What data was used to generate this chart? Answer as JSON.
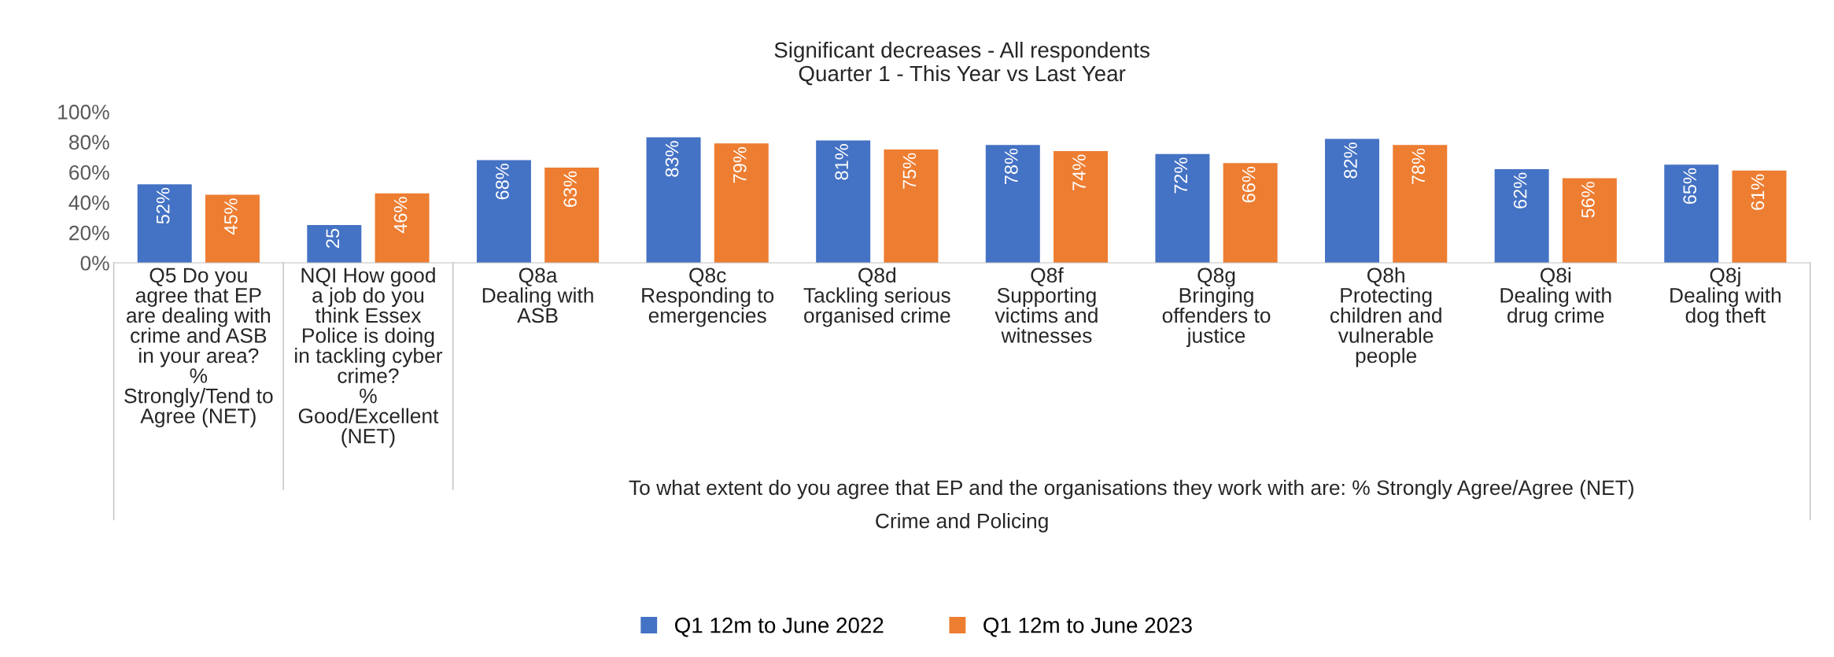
{
  "chart_data": {
    "type": "bar",
    "title": "Significant decreases - All respondents\nQuarter 1 - This Year vs Last Year",
    "categories": [
      "Q5 Do you\nagree that EP\nare dealing with\ncrime and ASB\nin your area?\n%\nStrongly/Tend to\nAgree (NET)",
      "NQI How good\na job do you\nthink Essex\nPolice is doing\nin tackling cyber\ncrime?\n%\nGood/Excellent\n(NET)",
      "Q8a\nDealing with\nASB",
      "Q8c\nResponding to\nemergencies",
      "Q8d\nTackling serious\norganised crime",
      "Q8f\nSupporting\nvictims and\nwitnesses",
      "Q8g\nBringing\noffenders to\njustice",
      "Q8h\nProtecting\nchildren and\nvulnerable\npeople",
      "Q8i\nDealing with\ndrug crime",
      "Q8j\nDealing with\ndog theft"
    ],
    "series": [
      {
        "name": "Q1 12m to June 2022",
        "color": "#4472c4",
        "values": [
          52,
          25,
          68,
          83,
          81,
          78,
          72,
          82,
          62,
          65
        ],
        "value_labels": [
          "52%",
          "25",
          "68%",
          "83%",
          "81%",
          "78%",
          "72%",
          "82%",
          "62%",
          "65%"
        ]
      },
      {
        "name": "Q1 12m to June 2023",
        "color": "#ed7d31",
        "values": [
          45,
          46,
          63,
          79,
          75,
          74,
          66,
          78,
          56,
          61
        ],
        "value_labels": [
          "45%",
          "46%",
          "63%",
          "79%",
          "75%",
          "74%",
          "66%",
          "78%",
          "56%",
          "61%"
        ]
      }
    ],
    "ylim": [
      0,
      100
    ],
    "yticks": [
      {
        "value": 0,
        "label": "0%"
      },
      {
        "value": 20,
        "label": "20%"
      },
      {
        "value": 40,
        "label": "40%"
      },
      {
        "value": 60,
        "label": "60%"
      },
      {
        "value": 80,
        "label": "80%"
      },
      {
        "value": 100,
        "label": "100%"
      }
    ],
    "annotations": [
      "To what extent do you agree that EP and the organisations they work with are: % Strongly Agree/Agree (NET)",
      "Crime and Policing"
    ],
    "grid": false,
    "legend": "bottom"
  }
}
